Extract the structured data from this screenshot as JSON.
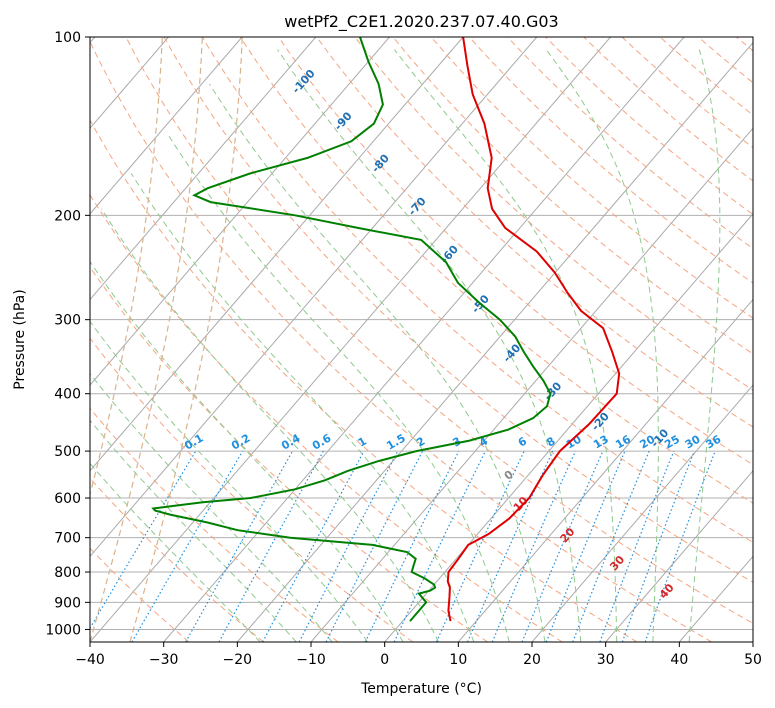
{
  "chart_data": {
    "type": "line",
    "subtype": "skew-t log-p diagram",
    "title": "wetPf2_C2E1.2020.237.07.40.G03",
    "xlabel": "Temperature (°C)",
    "ylabel": "Pressure (hPa)",
    "xlim": [
      -40,
      50
    ],
    "ylim": [
      1050,
      100
    ],
    "y_scale": "log",
    "grid": true,
    "x_ticks": [
      -40,
      -30,
      -20,
      -10,
      0,
      10,
      20,
      30,
      40,
      50
    ],
    "x_tick_labels": [
      "−40",
      "−30",
      "−20",
      "−10",
      "0",
      "10",
      "20",
      "30",
      "40",
      "50"
    ],
    "y_ticks": [
      1000,
      900,
      800,
      700,
      600,
      500,
      400,
      300,
      200,
      100
    ],
    "y_tick_labels": [
      "1000",
      "900",
      "800",
      "700",
      "600",
      "500",
      "400",
      "300",
      "200",
      "100"
    ],
    "series": [
      {
        "color": "#e00000",
        "p": [
          968,
          930,
          880,
          850,
          830,
          800,
          760,
          720,
          690,
          650,
          600,
          550,
          500,
          450,
          400,
          370,
          340,
          310,
          290,
          270,
          250,
          230,
          210,
          195,
          180,
          160,
          140,
          125,
          112,
          100
        ],
        "t": [
          6.5,
          5.0,
          3.5,
          2.5,
          1.5,
          0.5,
          0.3,
          0.0,
          1.5,
          2.5,
          2.8,
          2.0,
          1.5,
          2.3,
          2.5,
          0.5,
          -3.0,
          -7.0,
          -12.0,
          -16.0,
          -20.0,
          -25.0,
          -32.0,
          -36.0,
          -39.0,
          -42.0,
          -47.0,
          -52.0,
          -56.0,
          -60.0
        ]
      },
      {
        "color": "#008000",
        "p": [
          968,
          900,
          870,
          860,
          850,
          840,
          820,
          800,
          780,
          760,
          740,
          720,
          700,
          680,
          660,
          640,
          630,
          625,
          620,
          610,
          600,
          580,
          560,
          540,
          520,
          500,
          480,
          460,
          440,
          420,
          400,
          380,
          360,
          340,
          320,
          300,
          280,
          260,
          240,
          220,
          210,
          200,
          190,
          185,
          180,
          170,
          160,
          150,
          140,
          130,
          120,
          110,
          100
        ],
        "t": [
          1.0,
          1.0,
          -1.0,
          0.2,
          0.5,
          0.0,
          -2.0,
          -4.5,
          -5.0,
          -5.5,
          -7.5,
          -13.0,
          -25.0,
          -33.0,
          -38.0,
          -44.0,
          -46.5,
          -47.0,
          -45.0,
          -41.0,
          -35.0,
          -30.0,
          -27.0,
          -25.0,
          -22.0,
          -18.0,
          -12.0,
          -8.0,
          -6.0,
          -5.5,
          -6.5,
          -9.0,
          -12.0,
          -15.0,
          -18.0,
          -22.0,
          -27.0,
          -32.0,
          -36.0,
          -42.0,
          -52.0,
          -62.0,
          -75.0,
          -78.0,
          -77.0,
          -73.0,
          -67.0,
          -63.0,
          -62.0,
          -63.0,
          -66.0,
          -70.0,
          -74.0
        ]
      }
    ],
    "guide_lines": {
      "isotherm_color": "#aaaaaa",
      "dry_adiabat_color": "#f4a582",
      "moist_adiabat_color": "#8fc98f",
      "mixing_ratio_color": "#1f8fe0",
      "height_contour_color": "#d9b38c",
      "mixing_ratio_labels": [
        "0.1",
        "0.2",
        "0.4",
        "0.6",
        "1",
        "1.5",
        "2",
        "3",
        "4",
        "6",
        "8",
        "10",
        "13",
        "16",
        "20",
        "25",
        "30",
        "36"
      ],
      "blue_labels": [
        "-100",
        "-90",
        "-80",
        "-70",
        "-60",
        "-50",
        "-40",
        "-30",
        "-20",
        "-10"
      ],
      "red_labels": [
        "10",
        "20",
        "30",
        "40"
      ],
      "gray_labels": [
        "0"
      ]
    }
  }
}
